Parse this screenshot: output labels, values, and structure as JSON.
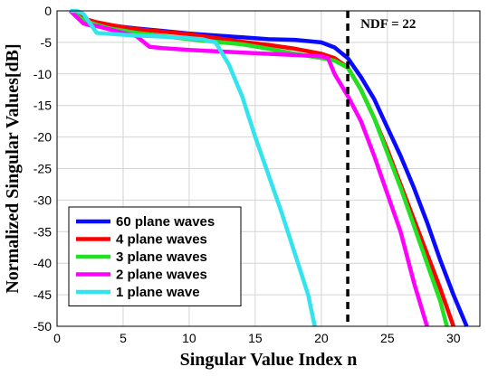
{
  "chart_data": {
    "type": "line",
    "xlabel": "Singular Value Index n",
    "ylabel": "Normalized Singular Values[dB]",
    "xlim": [
      0,
      32
    ],
    "ylim": [
      -50,
      0
    ],
    "xticks": [
      0,
      5,
      10,
      15,
      20,
      25,
      30
    ],
    "yticks": [
      0,
      -5,
      -10,
      -15,
      -20,
      -25,
      -30,
      -35,
      -40,
      -45,
      -50
    ],
    "grid": true,
    "legend_position": "bottom-left",
    "vline": {
      "x": 22,
      "label": "NDF = 22",
      "style": "dashed",
      "color": "#000000"
    },
    "series": [
      {
        "name": "60 plane waves",
        "color": "#0a0aff",
        "x": [
          1,
          2,
          4,
          6,
          8,
          10,
          12,
          14,
          16,
          18,
          19,
          20,
          21,
          22,
          23,
          24,
          25,
          26,
          27,
          28,
          29,
          30,
          31
        ],
        "y": [
          0,
          -1.5,
          -2.3,
          -2.8,
          -3.2,
          -3.6,
          -3.9,
          -4.2,
          -4.5,
          -4.6,
          -4.8,
          -5.0,
          -5.8,
          -7.5,
          -10.5,
          -14.0,
          -18.5,
          -23.0,
          -28.0,
          -33.5,
          -39.5,
          -45.0,
          -50
        ]
      },
      {
        "name": "4 plane waves",
        "color": "#ff0000",
        "x": [
          1,
          2,
          3,
          4,
          5,
          6,
          8,
          10,
          12,
          13,
          14,
          16,
          18,
          20,
          21,
          22,
          23,
          24,
          25,
          26,
          27,
          28,
          29,
          30
        ],
        "y": [
          0,
          -1.2,
          -1.8,
          -2.2,
          -2.6,
          -2.9,
          -3.3,
          -3.7,
          -4.3,
          -4.6,
          -4.9,
          -5.4,
          -6.0,
          -6.8,
          -7.5,
          -9.0,
          -12.5,
          -17.0,
          -22.0,
          -27.5,
          -33.0,
          -38.5,
          -44.0,
          -50
        ]
      },
      {
        "name": "3 plane waves",
        "color": "#22e022",
        "x": [
          1,
          2,
          3,
          4,
          6,
          8,
          10,
          12,
          14,
          16,
          18,
          20,
          21,
          22,
          23,
          24,
          25,
          26,
          27,
          28,
          29,
          29.5
        ],
        "y": [
          0,
          -1.5,
          -2.2,
          -2.8,
          -3.5,
          -4.0,
          -4.5,
          -4.9,
          -5.3,
          -6.0,
          -6.8,
          -7.5,
          -7.9,
          -9.0,
          -12.5,
          -17.0,
          -22.5,
          -28.0,
          -34.0,
          -40.0,
          -46.0,
          -50
        ]
      },
      {
        "name": "2 plane waves",
        "color": "#ff00ff",
        "x": [
          1,
          2,
          2.5,
          3,
          5,
          6,
          7,
          8,
          10,
          12,
          14,
          16,
          18,
          20,
          20.5,
          21,
          22,
          23,
          24,
          25,
          26,
          27,
          28
        ],
        "y": [
          0,
          -2.0,
          -2.3,
          -2.4,
          -3.5,
          -4.0,
          -5.7,
          -5.9,
          -6.2,
          -6.4,
          -6.6,
          -6.8,
          -7.0,
          -7.2,
          -7.5,
          -10.0,
          -13.5,
          -17.5,
          -23.0,
          -29.0,
          -35.0,
          -43.0,
          -50
        ]
      },
      {
        "name": "1 plane wave",
        "color": "#33e4ee",
        "x": [
          1,
          1.5,
          2,
          3,
          5,
          7,
          9,
          11,
          12,
          13,
          14,
          15,
          16,
          17,
          18,
          19,
          19.5
        ],
        "y": [
          0,
          0,
          -0.5,
          -3.5,
          -3.8,
          -4.0,
          -4.2,
          -4.5,
          -5.0,
          -8.5,
          -13.5,
          -20.0,
          -26.0,
          -32.0,
          -38.5,
          -45.0,
          -50
        ]
      }
    ]
  }
}
